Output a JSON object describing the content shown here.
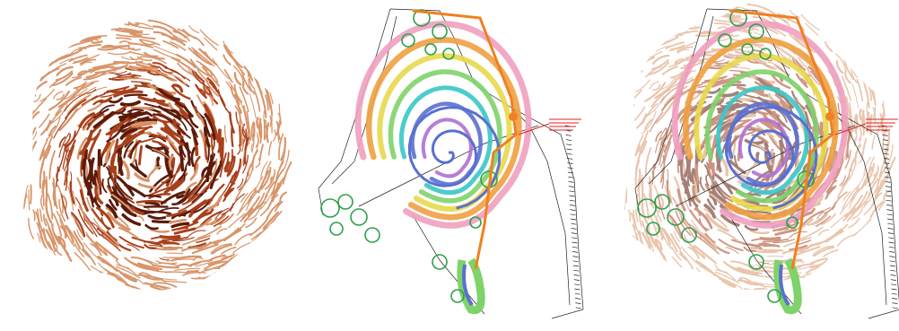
{
  "figure": {
    "panels": [
      {
        "name": "thermal-field-drawing",
        "layers": [
          "flow-lines"
        ]
      },
      {
        "name": "contour-plan",
        "layers": [
          "site-plan",
          "contour-rings",
          "green-circles",
          "orange-path"
        ],
        "annotation_text": ""
      },
      {
        "name": "overlay-composite",
        "layers": [
          "flow-lines",
          "site-plan",
          "contour-rings",
          "green-circles",
          "orange-path"
        ],
        "annotation_text": ""
      }
    ]
  },
  "colors": {
    "flow_dark": "#5a1a0a",
    "flow_mid": "#a8401c",
    "flow_light": "#d8956a",
    "ring_blue": "#5a70d0",
    "ring_cyan": "#39c6c6",
    "ring_green": "#7ed36a",
    "ring_yellow": "#e8d84a",
    "ring_orange": "#f0a040",
    "ring_pink": "#f0a0c0",
    "ring_purple": "#b070d0",
    "circle_green": "#2ea04a",
    "path_orange": "#f08020",
    "plan_line": "#222222",
    "note_red": "#e02020"
  }
}
